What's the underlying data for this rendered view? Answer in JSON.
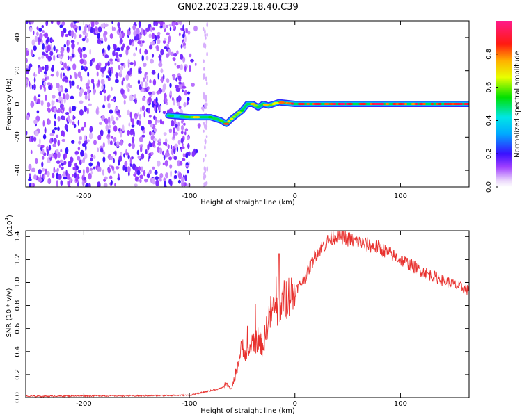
{
  "title": "GN02.2023.229.18.40.C39",
  "chart_data": [
    {
      "type": "heatmap",
      "xlabel": "Height of straight line (km)",
      "ylabel": "Frequency (Hz)",
      "xlim": [
        -255,
        165
      ],
      "ylim": [
        -50,
        50
      ],
      "x_ticks": [
        -200,
        -100,
        0,
        100
      ],
      "x_tick_labels": [
        "-200",
        "-100",
        "0",
        "100"
      ],
      "y_ticks": [
        -40,
        -20,
        0,
        20,
        40
      ],
      "y_tick_labels": [
        "-40",
        "-20",
        "0",
        "20",
        "40"
      ],
      "colorbar": {
        "label": "Normalized spectral amplitude",
        "range": [
          0,
          1
        ],
        "ticks": [
          0,
          0.2,
          0.4,
          0.6,
          0.8
        ],
        "tick_labels": [
          "0.0",
          "0.2",
          "0.4",
          "0.6",
          "0.8"
        ]
      },
      "signal_track": {
        "x": [
          -120,
          -100,
          -90,
          -80,
          -70,
          -65,
          -60,
          -50,
          -45,
          -40,
          -35,
          -30,
          -25,
          -20,
          -15,
          0,
          50,
          100,
          165
        ],
        "freq": [
          -7,
          -8,
          -8,
          -8,
          -10,
          -12,
          -9,
          -4,
          0,
          0,
          -2,
          0,
          -1,
          0,
          1,
          0,
          0,
          0,
          0
        ],
        "amplitude": [
          0.3,
          0.55,
          0.75,
          0.6,
          0.5,
          0.85,
          0.6,
          0.55,
          0.8,
          0.7,
          0.5,
          0.8,
          0.6,
          0.7,
          0.75,
          0.85,
          0.9,
          0.85,
          0.85
        ]
      },
      "noise_region_x": [
        -255,
        -100
      ]
    },
    {
      "type": "line",
      "xlabel": "Height of straight line (km)",
      "ylabel": "SNR (10 * v/v)",
      "y_scale_label": "(x10",
      "y_scale_exponent": "4",
      "y_scale_close": ")",
      "xlim": [
        -255,
        165
      ],
      "ylim": [
        0,
        14500
      ],
      "x_ticks": [
        -200,
        -100,
        0,
        100
      ],
      "x_tick_labels": [
        "-200",
        "-100",
        "0",
        "100"
      ],
      "y_ticks": [
        0,
        2000,
        4000,
        6000,
        8000,
        10000,
        12000,
        14000
      ],
      "y_tick_labels": [
        "0.0",
        "0.2",
        "0.4",
        "0.6",
        "0.8",
        "1.0",
        "1.2",
        "1.4"
      ],
      "series": [
        {
          "color": "#e8312e",
          "x": [
            -255,
            -200,
            -150,
            -100,
            -90,
            -80,
            -70,
            -65,
            -60,
            -55,
            -50,
            -45,
            -40,
            -35,
            -30,
            -25,
            -20,
            -15,
            -10,
            -5,
            0,
            10,
            20,
            30,
            40,
            50,
            60,
            80,
            100,
            120,
            140,
            165
          ],
          "y": [
            100,
            150,
            150,
            200,
            400,
            600,
            800,
            1200,
            700,
            2500,
            4500,
            3500,
            5000,
            4800,
            4500,
            7000,
            7800,
            7500,
            8500,
            9000,
            9200,
            10500,
            12500,
            13500,
            14200,
            13800,
            13500,
            13000,
            12000,
            11000,
            10200,
            9300
          ]
        }
      ]
    }
  ]
}
